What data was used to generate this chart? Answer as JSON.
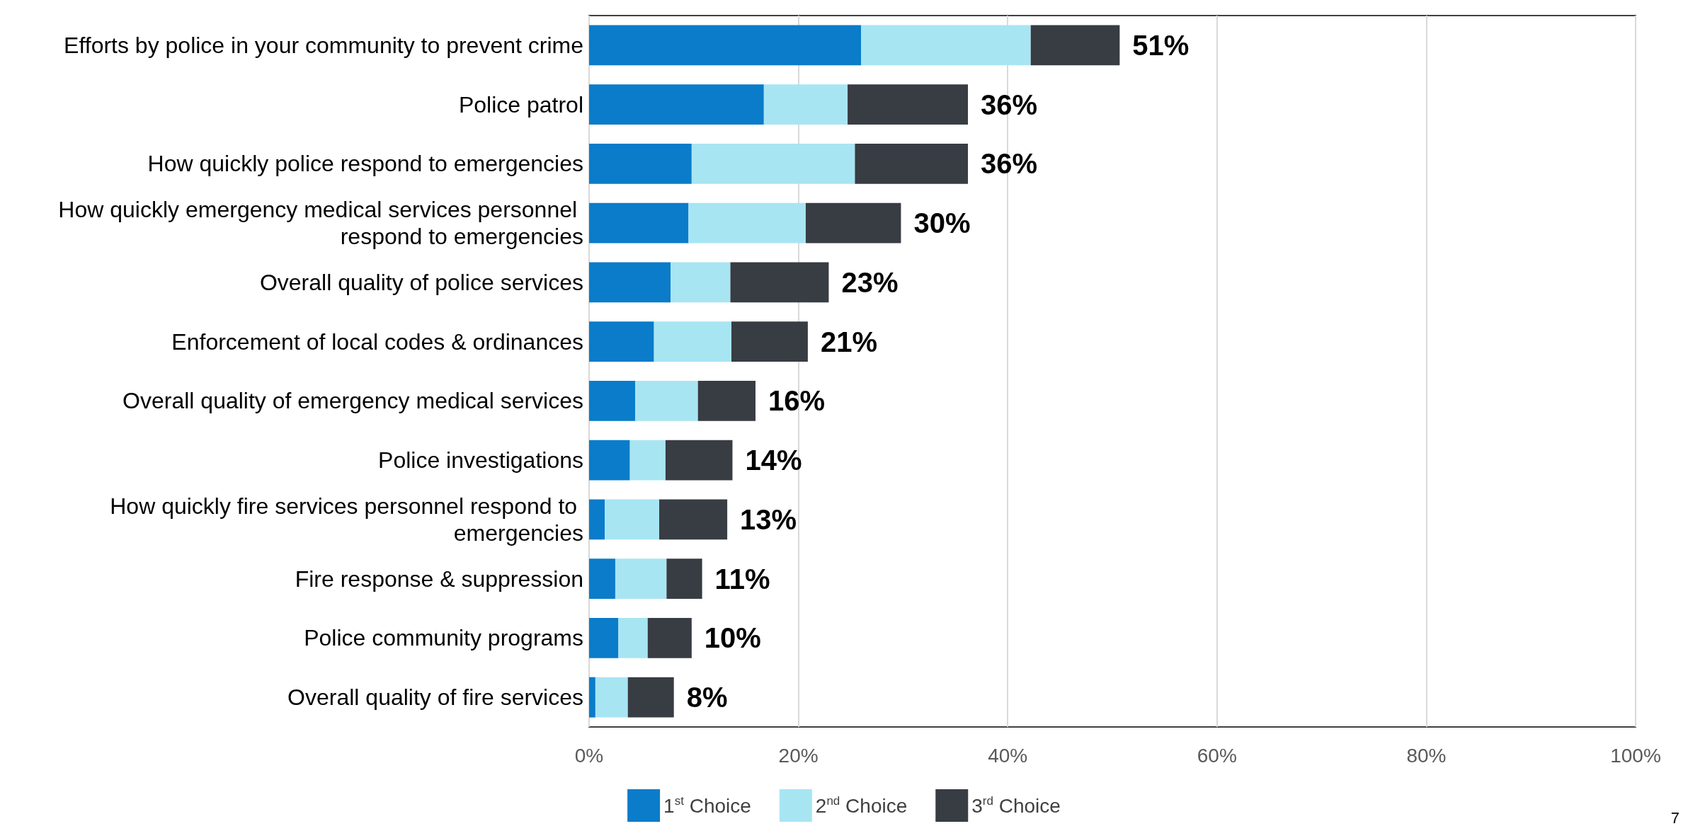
{
  "chart_data": {
    "type": "bar",
    "orientation": "horizontal",
    "stacked": true,
    "categories": [
      "Efforts by police in your community to prevent crime",
      "Police patrol",
      "How quickly police respond to emergencies",
      "How quickly emergency medical services personnel respond to emergencies",
      "Overall quality of police services",
      "Enforcement of local codes & ordinances",
      "Overall quality of emergency medical services",
      "Police investigations",
      "How quickly fire services personnel respond to emergencies",
      "Fire response & suppression",
      "Police community programs",
      "Overall quality of fire services"
    ],
    "series": [
      {
        "name": "1$^{st}$ Choice",
        "color": "#0a7cc9",
        "values": [
          26.0,
          16.7,
          9.8,
          9.5,
          7.8,
          6.2,
          4.4,
          3.9,
          1.5,
          2.5,
          2.8,
          0.6
        ]
      },
      {
        "name": "2$^{nd}$ Choice",
        "color": "#a8e5f3",
        "values": [
          16.2,
          8.0,
          15.6,
          11.2,
          5.7,
          7.4,
          6.0,
          3.4,
          5.2,
          4.9,
          2.8,
          3.1
        ]
      },
      {
        "name": "3$^{rd}$ Choice",
        "color": "#383c43",
        "values": [
          8.5,
          11.5,
          10.8,
          9.1,
          9.4,
          7.3,
          5.5,
          6.4,
          6.5,
          3.4,
          4.2,
          4.4
        ]
      }
    ],
    "totals": [
      "51%",
      "36%",
      "36%",
      "30%",
      "23%",
      "21%",
      "16%",
      "14%",
      "13%",
      "11%",
      "10%",
      "8%"
    ],
    "xlim": [
      0,
      100
    ],
    "xticks": [
      {
        "value": 0,
        "label": "0%"
      },
      {
        "value": 20,
        "label": "20%"
      },
      {
        "value": 40,
        "label": "40%"
      },
      {
        "value": 60,
        "label": "60%"
      },
      {
        "value": 80,
        "label": "80%"
      },
      {
        "value": 100,
        "label": "100%"
      }
    ],
    "grid": "x",
    "legend": "bottom",
    "annotations": [
      "7"
    ]
  }
}
